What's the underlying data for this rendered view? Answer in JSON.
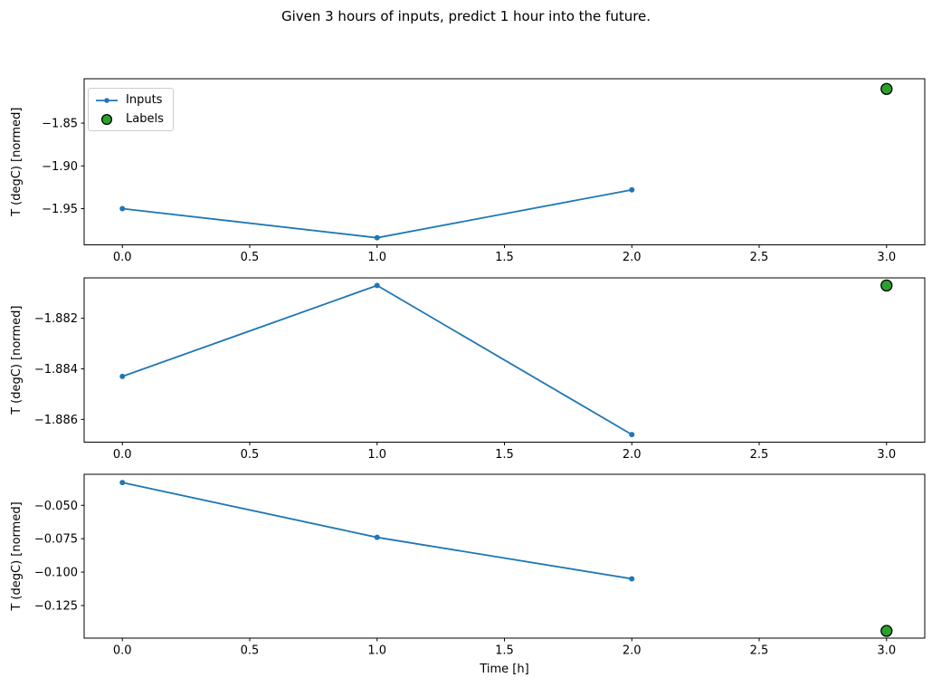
{
  "title": "Given 3 hours of inputs, predict 1 hour into the future.",
  "colors": {
    "inputs": "#1f77b4",
    "labels_fill": "#2ca02c",
    "labels_edge": "#000000",
    "axis": "#000000",
    "legend_border": "#cccccc"
  },
  "legend": {
    "items": [
      {
        "label": "Inputs",
        "marker": "line-with-dot"
      },
      {
        "label": "Labels",
        "marker": "filled-circle"
      }
    ]
  },
  "xlabel": "Time [h]",
  "chart_data": [
    {
      "type": "line",
      "ylabel": "T (degC) [normed]",
      "xlabel": "",
      "x": [
        0,
        1,
        2
      ],
      "series": [
        {
          "name": "Inputs",
          "values": [
            -1.95,
            -1.984,
            -1.928
          ]
        }
      ],
      "label_point": {
        "name": "Labels",
        "x": 3,
        "y": -1.81
      },
      "xticks": {
        "values": [
          0,
          0.5,
          1,
          1.5,
          2,
          2.5,
          3
        ],
        "labels": [
          "0.0",
          "0.5",
          "1.0",
          "1.5",
          "2.0",
          "2.5",
          "3.0"
        ]
      },
      "yticks": {
        "values": [
          -1.85,
          -1.9,
          -1.95
        ],
        "labels": [
          "−1.85",
          "−1.90",
          "−1.95"
        ]
      },
      "xlim": [
        -0.15,
        3.15
      ],
      "ylim": [
        -1.9923,
        -1.7981
      ],
      "grid": false,
      "legend_visible": true
    },
    {
      "type": "line",
      "ylabel": "T (degC) [normed]",
      "xlabel": "",
      "x": [
        0,
        1,
        2
      ],
      "series": [
        {
          "name": "Inputs",
          "values": [
            -1.8843,
            -1.8807,
            -1.8866
          ]
        }
      ],
      "label_point": {
        "name": "Labels",
        "x": 3,
        "y": -1.8807
      },
      "xticks": {
        "values": [
          0,
          0.5,
          1,
          1.5,
          2,
          2.5,
          3
        ],
        "labels": [
          "0.0",
          "0.5",
          "1.0",
          "1.5",
          "2.0",
          "2.5",
          "3.0"
        ]
      },
      "yticks": {
        "values": [
          -1.882,
          -1.884,
          -1.886
        ],
        "labels": [
          "−1.882",
          "−1.884",
          "−1.886"
        ]
      },
      "xlim": [
        -0.15,
        3.15
      ],
      "ylim": [
        -1.8869,
        -1.8804
      ],
      "grid": false,
      "legend_visible": false
    },
    {
      "type": "line",
      "ylabel": "T (degC) [normed]",
      "xlabel": "Time [h]",
      "x": [
        0,
        1,
        2
      ],
      "series": [
        {
          "name": "Inputs",
          "values": [
            -0.033,
            -0.074,
            -0.105
          ]
        }
      ],
      "label_point": {
        "name": "Labels",
        "x": 3,
        "y": -0.144
      },
      "xticks": {
        "values": [
          0,
          0.5,
          1,
          1.5,
          2,
          2.5,
          3
        ],
        "labels": [
          "0.0",
          "0.5",
          "1.0",
          "1.5",
          "2.0",
          "2.5",
          "3.0"
        ]
      },
      "yticks": {
        "values": [
          -0.05,
          -0.075,
          -0.1,
          -0.125
        ],
        "labels": [
          "−0.050",
          "−0.075",
          "−0.100",
          "−0.125"
        ]
      },
      "xlim": [
        -0.15,
        3.15
      ],
      "ylim": [
        -0.1494,
        -0.0268
      ],
      "grid": false,
      "legend_visible": false
    }
  ]
}
